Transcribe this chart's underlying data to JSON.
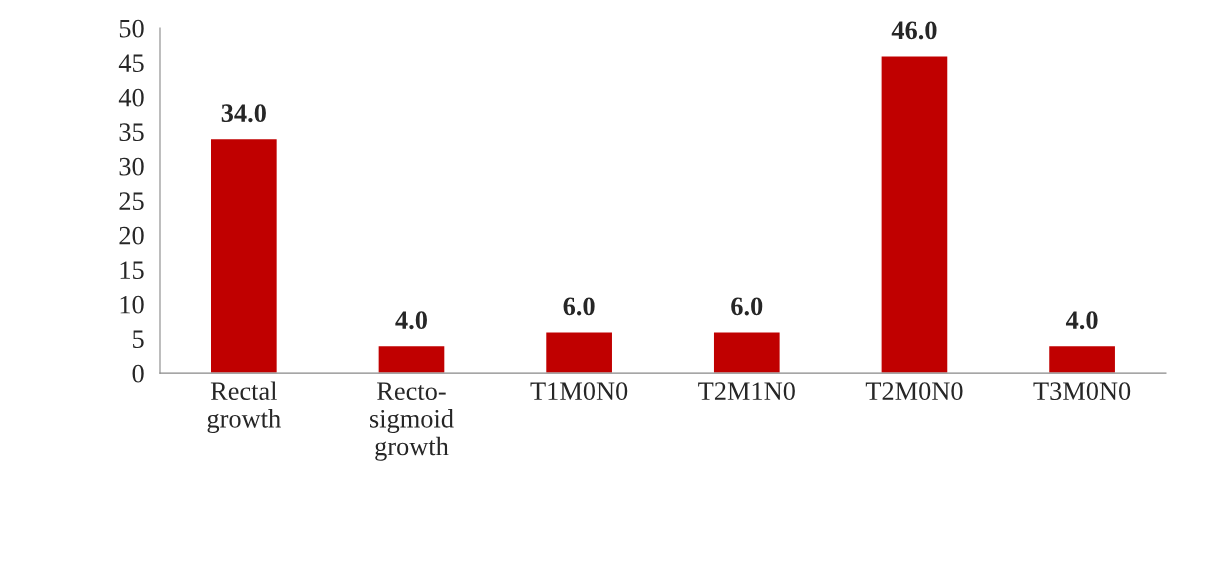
{
  "chart_data": {
    "type": "bar",
    "categories": [
      "Rectal growth",
      "Recto-sigmoid growth",
      "T1M0N0",
      "T2M1N0",
      "T2M0N0",
      "T3M0N0"
    ],
    "values": [
      34.0,
      4.0,
      6.0,
      6.0,
      46.0,
      4.0
    ],
    "value_labels": [
      "34.0",
      "4.0",
      "6.0",
      "6.0",
      "46.0",
      "4.0"
    ],
    "color": "#c00000",
    "ylim": [
      0,
      50
    ],
    "yticks": [
      0,
      5,
      10,
      15,
      20,
      25,
      30,
      35,
      40,
      45,
      50
    ],
    "grid": false
  }
}
